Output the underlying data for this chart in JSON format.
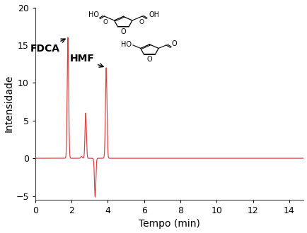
{
  "xlim": [
    0,
    14.8
  ],
  "ylim": [
    -5.5,
    20
  ],
  "xticks": [
    0,
    2,
    4,
    6,
    8,
    10,
    12,
    14
  ],
  "yticks": [
    -5,
    0,
    5,
    10,
    15,
    20
  ],
  "xlabel": "Tempo (min)",
  "ylabel": "Intensidade",
  "line_color": "#d94040",
  "background_color": "#ffffff",
  "fdca_label": "FDCA",
  "hmf_label": "HMF",
  "fdca_peak_time": 1.8,
  "fdca_peak_height": 16.0,
  "hmf_peak_time": 3.91,
  "hmf_peak_height": 12.0,
  "trough_time": 3.3,
  "trough_depth": -5.15,
  "shoulder_time": 2.78,
  "shoulder_height": 6.0,
  "small_peak_time": 2.55,
  "small_peak_height": 0.25,
  "fdca_sigma": 0.04,
  "hmf_sigma": 0.042,
  "shoulder_sigma": 0.038,
  "trough_sigma": 0.038
}
